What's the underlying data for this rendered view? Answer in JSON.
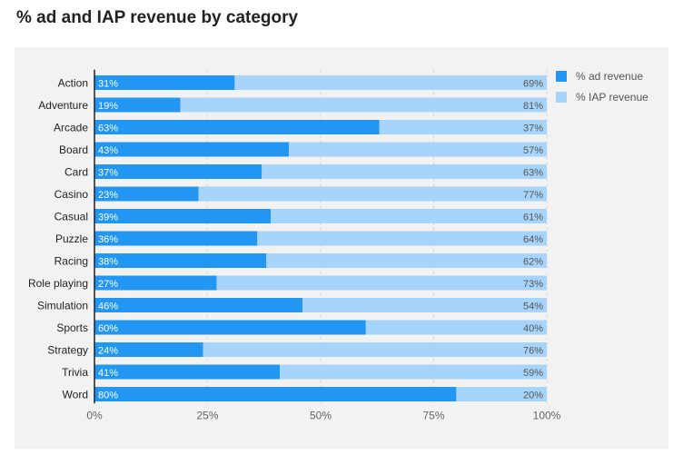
{
  "title": "% ad and IAP revenue by category",
  "colors": {
    "ad": "#2196f3",
    "iap": "#a6d4fa",
    "grid": "#d4d4d4",
    "axis": "#222222"
  },
  "legend": [
    {
      "label": "% ad revenue",
      "color": "#2196f3"
    },
    {
      "label": "% IAP revenue",
      "color": "#a6d4fa"
    }
  ],
  "chart_data": {
    "type": "bar",
    "orientation": "horizontal",
    "stacked": true,
    "title": "% ad and IAP revenue by category",
    "categories": [
      "Action",
      "Adventure",
      "Arcade",
      "Board",
      "Card",
      "Casino",
      "Casual",
      "Puzzle",
      "Racing",
      "Role playing",
      "Simulation",
      "Sports",
      "Strategy",
      "Trivia",
      "Word"
    ],
    "series": [
      {
        "name": "% ad revenue",
        "values": [
          31,
          19,
          63,
          43,
          37,
          23,
          39,
          36,
          38,
          27,
          46,
          60,
          24,
          41,
          80
        ]
      },
      {
        "name": "% IAP revenue",
        "values": [
          69,
          81,
          37,
          57,
          63,
          77,
          61,
          64,
          62,
          73,
          54,
          40,
          76,
          59,
          20
        ]
      }
    ],
    "xlim": [
      0,
      100
    ],
    "x_ticks": [
      "0%",
      "25%",
      "50%",
      "75%",
      "100%"
    ],
    "grid": true,
    "legend_position": "right"
  }
}
